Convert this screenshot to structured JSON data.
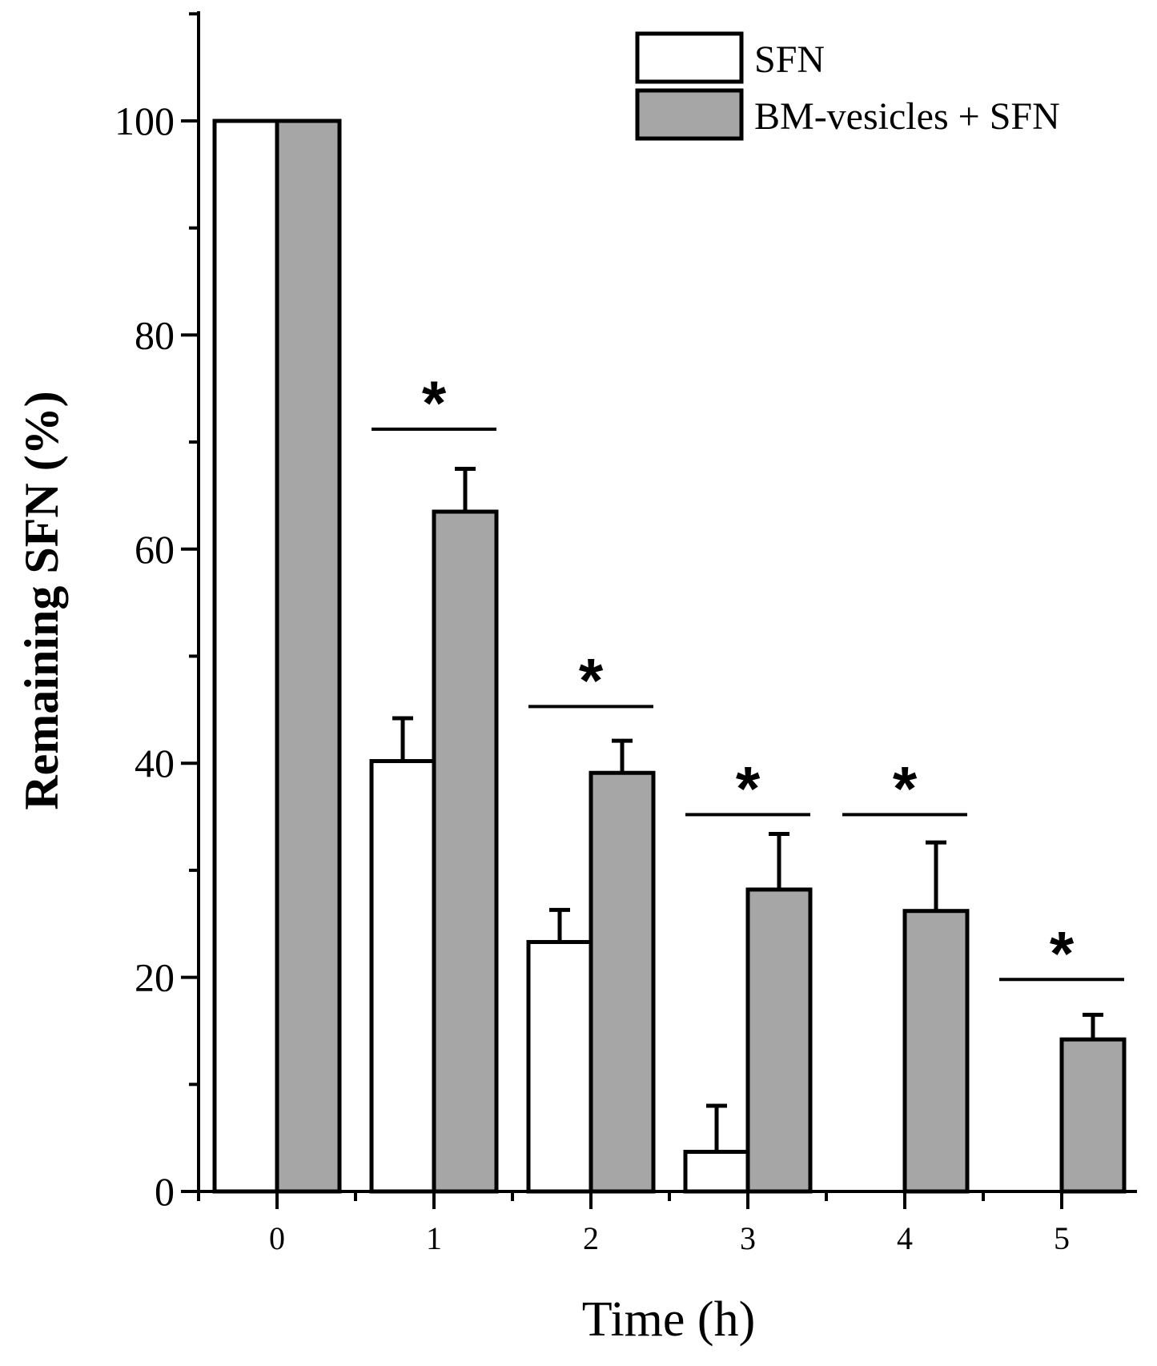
{
  "chart_data": {
    "type": "bar",
    "title": "",
    "xlabel": "Time (h)",
    "ylabel": "Remaining SFN (%)",
    "categories": [
      "0",
      "1",
      "2",
      "3",
      "4",
      "5"
    ],
    "ylim": [
      0,
      110
    ],
    "yticks": [
      0,
      20,
      40,
      60,
      80,
      100
    ],
    "series": [
      {
        "name": "SFN",
        "color": "#ffffff",
        "values": [
          100,
          40.2,
          23.3,
          3.7,
          0,
          0
        ],
        "errors": [
          0,
          4.0,
          3.0,
          4.3,
          0,
          0
        ]
      },
      {
        "name": "BM-vesicles + SFN",
        "color": "#a6a6a6",
        "values": [
          100,
          63.5,
          39.1,
          28.2,
          26.2,
          14.2
        ],
        "errors": [
          0,
          4.0,
          3.0,
          5.2,
          6.4,
          2.3
        ]
      }
    ],
    "significance": [
      {
        "category": "1",
        "label": "*",
        "line_y": 71.2
      },
      {
        "category": "2",
        "label": "*",
        "line_y": 45.3
      },
      {
        "category": "3",
        "label": "*",
        "line_y": 35.2
      },
      {
        "category": "4",
        "label": "*",
        "line_y": 35.2
      },
      {
        "category": "5",
        "label": "*",
        "line_y": 19.8
      }
    ],
    "legend_position": "top-right",
    "grid": false
  }
}
